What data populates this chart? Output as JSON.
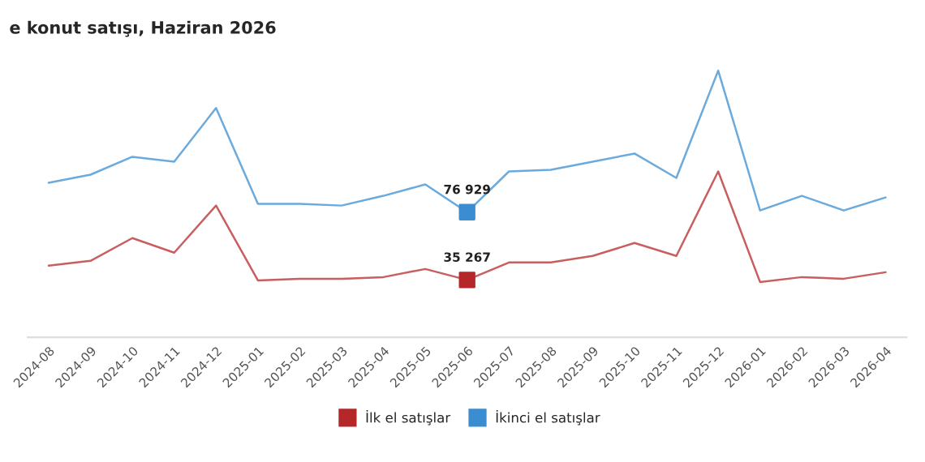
{
  "chart_data": {
    "type": "line",
    "title": "e konut satışı, Haziran 2026",
    "categories": [
      "2024-08",
      "2024-09",
      "2024-10",
      "2024-11",
      "2024-12",
      "2025-01",
      "2025-02",
      "2025-03",
      "2025-04",
      "2025-05",
      "2025-06",
      "2025-07",
      "2025-08",
      "2025-09",
      "2025-10",
      "2025-11",
      "2025-12",
      "2026-01",
      "2026-02",
      "2026-03",
      "2026-04"
    ],
    "series": [
      {
        "name": "İlk el satışlar",
        "color": "#b5282a",
        "values": [
          44000,
          47000,
          61000,
          52000,
          81000,
          35000,
          36000,
          36000,
          37000,
          42000,
          35267,
          46000,
          46000,
          50000,
          58000,
          50000,
          102000,
          34000,
          37000,
          36000,
          40000
        ],
        "value_labels": [
          null,
          null,
          null,
          null,
          null,
          null,
          null,
          null,
          null,
          null,
          "35 267",
          null,
          null,
          null,
          null,
          null,
          null,
          null,
          null,
          null,
          null
        ]
      },
      {
        "name": "İkinci el satışlar",
        "color": "#3a8dd0",
        "values": [
          95000,
          100000,
          111000,
          108000,
          141000,
          82000,
          82000,
          81000,
          87000,
          94000,
          76929,
          102000,
          103000,
          108000,
          113000,
          98000,
          164000,
          78000,
          87000,
          78000,
          86000
        ],
        "value_labels": [
          null,
          null,
          null,
          null,
          null,
          null,
          null,
          null,
          null,
          null,
          "76 929",
          null,
          null,
          null,
          null,
          null,
          null,
          null,
          null,
          null,
          null
        ]
      }
    ],
    "tick_labels": "x",
    "legend": "bottom",
    "grid": false,
    "marker": "none",
    "line_style": "solid"
  }
}
